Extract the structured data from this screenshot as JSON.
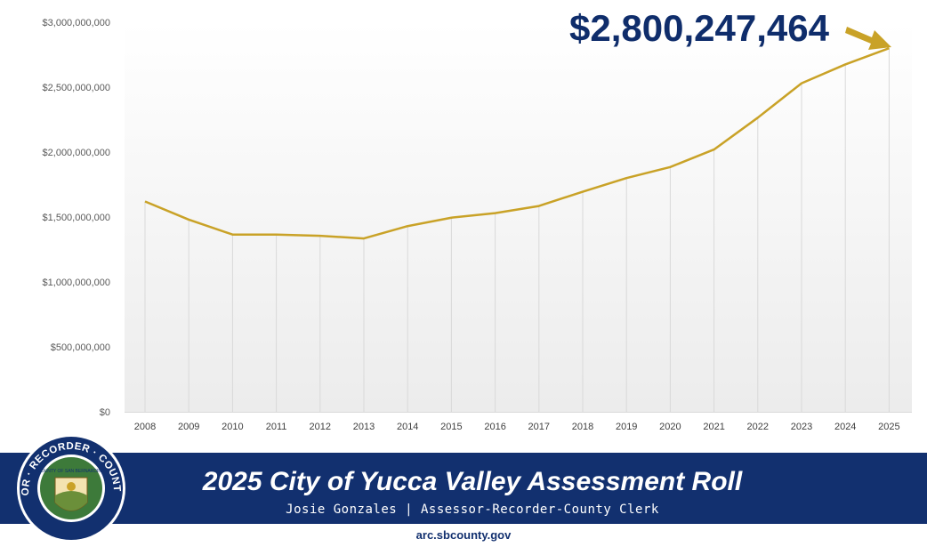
{
  "callout": {
    "value_label": "$2,800,247,464"
  },
  "banner": {
    "title": "2025 City of Yucca Valley Assessment Roll",
    "subtitle": "Josie Gonzales | Assessor-Recorder-County Clerk"
  },
  "footer": {
    "website": "arc.sbcounty.gov"
  },
  "seal": {
    "ring_text": "ASSESSOR · RECORDER · COUNTY CLERK",
    "inner_text": "COUNTY OF SAN BERNARDINO"
  },
  "colors": {
    "line": "#c9a227",
    "callout_text": "#0f2d6b",
    "arrow": "#c9a227",
    "banner": "#12306f",
    "seal_ring": "#12306f",
    "seal_inner": "#3d7a3a"
  },
  "chart_data": {
    "type": "line",
    "categories": [
      "2008",
      "2009",
      "2010",
      "2011",
      "2012",
      "2013",
      "2014",
      "2015",
      "2016",
      "2017",
      "2018",
      "2019",
      "2020",
      "2021",
      "2022",
      "2023",
      "2024",
      "2025"
    ],
    "series": [
      {
        "values": [
          1620000000,
          1480000000,
          1365000000,
          1365000000,
          1355000000,
          1335000000,
          1430000000,
          1495000000,
          1530000000,
          1585000000,
          1695000000,
          1800000000,
          1885000000,
          2020000000,
          2265000000,
          2530000000,
          2675000000,
          2800247464
        ]
      }
    ],
    "y_ticks": [
      "$0",
      "$500,000,000",
      "$1,000,000,000",
      "$1,500,000,000",
      "$2,000,000,000",
      "$2,500,000,000",
      "$3,000,000,000"
    ],
    "ylim": [
      0,
      3000000000
    ],
    "title": "",
    "xlabel": "",
    "ylabel": "",
    "grid": "vertical drop lines",
    "legend": "none"
  }
}
